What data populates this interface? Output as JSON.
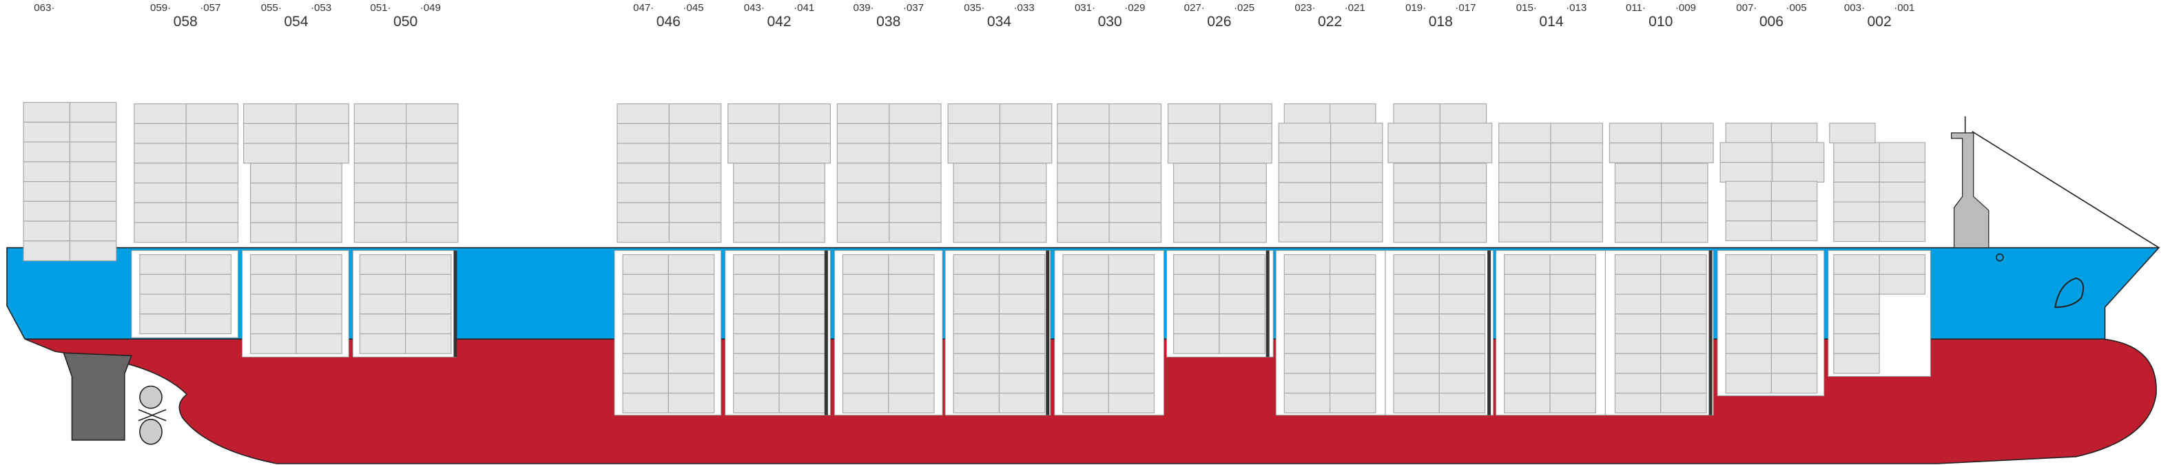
{
  "aft_bay": "063·",
  "bays": [
    {
      "left": "059·",
      "right": "·057",
      "label": "058"
    },
    {
      "left": "055·",
      "right": "·053",
      "label": "054"
    },
    {
      "left": "051·",
      "right": "·049",
      "label": "050"
    },
    {
      "left": "047·",
      "right": "·045",
      "label": "046"
    },
    {
      "left": "043·",
      "right": "·041",
      "label": "042"
    },
    {
      "left": "039·",
      "right": "·037",
      "label": "038"
    },
    {
      "left": "035·",
      "right": "·033",
      "label": "034"
    },
    {
      "left": "031·",
      "right": "·029",
      "label": "030"
    },
    {
      "left": "027·",
      "right": "·025",
      "label": "026"
    },
    {
      "left": "023·",
      "right": "·021",
      "label": "022"
    },
    {
      "left": "019·",
      "right": "·017",
      "label": "018"
    },
    {
      "left": "015·",
      "right": "·013",
      "label": "014"
    },
    {
      "left": "011·",
      "right": "·009",
      "label": "010"
    },
    {
      "left": "007·",
      "right": "·005",
      "label": "006"
    },
    {
      "left": "003·",
      "right": "·001",
      "label": "002"
    }
  ]
}
